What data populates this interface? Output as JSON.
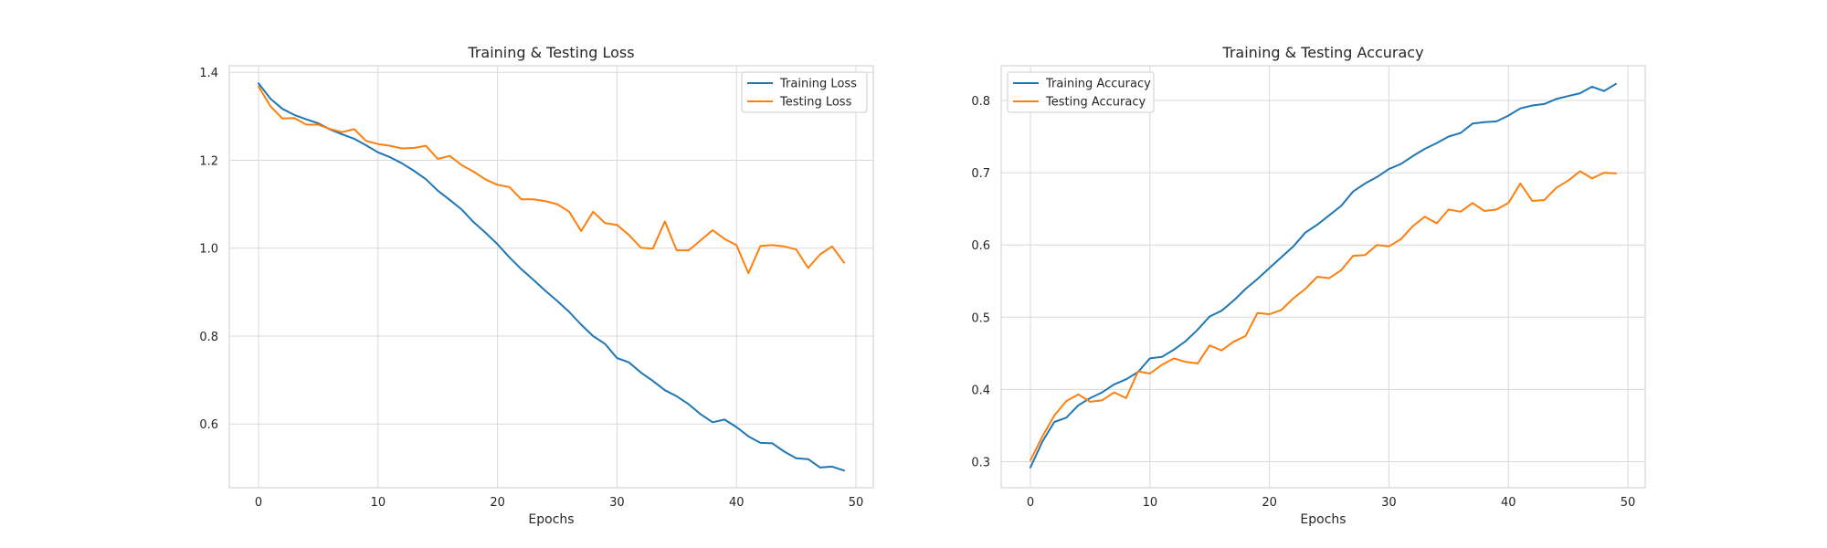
{
  "chart_data": [
    {
      "type": "line",
      "title": "Training & Testing Loss",
      "xlabel": "Epochs",
      "ylabel": "",
      "xlim": [
        -2.45,
        51.45
      ],
      "ylim": [
        0.455,
        1.415
      ],
      "xticks": [
        0,
        10,
        20,
        30,
        40,
        50
      ],
      "yticks": [
        0.6,
        0.8,
        1.0,
        1.2,
        1.4
      ],
      "ytick_labels": [
        "0.6",
        "0.8",
        "1.0",
        "1.2",
        "1.4"
      ],
      "grid": true,
      "legend_position": "top-right",
      "x": [
        0,
        1,
        2,
        3,
        4,
        5,
        6,
        7,
        8,
        9,
        10,
        11,
        12,
        13,
        14,
        15,
        16,
        17,
        18,
        19,
        20,
        21,
        22,
        23,
        24,
        25,
        26,
        27,
        28,
        29,
        30,
        31,
        32,
        33,
        34,
        35,
        36,
        37,
        38,
        39,
        40,
        41,
        42,
        43,
        44,
        45,
        46,
        47,
        48,
        49
      ],
      "series": [
        {
          "name": "Training Loss",
          "color": "#1f77b4",
          "values": [
            1.375,
            1.34,
            1.317,
            1.303,
            1.293,
            1.284,
            1.27,
            1.259,
            1.249,
            1.234,
            1.218,
            1.207,
            1.193,
            1.176,
            1.157,
            1.131,
            1.11,
            1.088,
            1.059,
            1.035,
            1.009,
            0.979,
            0.952,
            0.928,
            0.903,
            0.88,
            0.855,
            0.826,
            0.8,
            0.782,
            0.75,
            0.74,
            0.717,
            0.698,
            0.677,
            0.663,
            0.645,
            0.622,
            0.604,
            0.61,
            0.593,
            0.572,
            0.557,
            0.556,
            0.537,
            0.522,
            0.52,
            0.501,
            0.503,
            0.494
          ]
        },
        {
          "name": "Testing Loss",
          "color": "#ff7f0e",
          "values": [
            1.368,
            1.323,
            1.295,
            1.296,
            1.281,
            1.281,
            1.271,
            1.264,
            1.271,
            1.244,
            1.237,
            1.233,
            1.227,
            1.228,
            1.233,
            1.203,
            1.21,
            1.189,
            1.174,
            1.156,
            1.144,
            1.139,
            1.111,
            1.111,
            1.107,
            1.1,
            1.083,
            1.039,
            1.083,
            1.057,
            1.053,
            1.03,
            1.001,
            0.999,
            1.061,
            0.995,
            0.995,
            1.018,
            1.041,
            1.021,
            1.007,
            0.943,
            1.005,
            1.007,
            1.004,
            0.997,
            0.955,
            0.986,
            1.004,
            0.967
          ]
        }
      ]
    },
    {
      "type": "line",
      "title": "Training & Testing Accuracy",
      "xlabel": "Epochs",
      "ylabel": "",
      "xlim": [
        -2.45,
        51.45
      ],
      "ylim": [
        0.264,
        0.848
      ],
      "xticks": [
        0,
        10,
        20,
        30,
        40,
        50
      ],
      "yticks": [
        0.3,
        0.4,
        0.5,
        0.6,
        0.7,
        0.8
      ],
      "ytick_labels": [
        "0.3",
        "0.4",
        "0.5",
        "0.6",
        "0.7",
        "0.8"
      ],
      "grid": true,
      "legend_position": "top-left",
      "x": [
        0,
        1,
        2,
        3,
        4,
        5,
        6,
        7,
        8,
        9,
        10,
        11,
        12,
        13,
        14,
        15,
        16,
        17,
        18,
        19,
        20,
        21,
        22,
        23,
        24,
        25,
        26,
        27,
        28,
        29,
        30,
        31,
        32,
        33,
        34,
        35,
        36,
        37,
        38,
        39,
        40,
        41,
        42,
        43,
        44,
        45,
        46,
        47,
        48,
        49
      ],
      "series": [
        {
          "name": "Training Accuracy",
          "color": "#1f77b4",
          "values": [
            0.292,
            0.328,
            0.355,
            0.361,
            0.378,
            0.388,
            0.396,
            0.407,
            0.414,
            0.424,
            0.443,
            0.445,
            0.455,
            0.467,
            0.483,
            0.501,
            0.509,
            0.523,
            0.539,
            0.553,
            0.568,
            0.583,
            0.598,
            0.617,
            0.628,
            0.641,
            0.654,
            0.674,
            0.685,
            0.694,
            0.705,
            0.712,
            0.723,
            0.733,
            0.741,
            0.75,
            0.755,
            0.768,
            0.77,
            0.771,
            0.779,
            0.789,
            0.793,
            0.795,
            0.802,
            0.806,
            0.81,
            0.819,
            0.813,
            0.823
          ]
        },
        {
          "name": "Testing Accuracy",
          "color": "#ff7f0e",
          "values": [
            0.302,
            0.335,
            0.364,
            0.384,
            0.393,
            0.383,
            0.385,
            0.396,
            0.388,
            0.425,
            0.422,
            0.434,
            0.443,
            0.438,
            0.436,
            0.461,
            0.454,
            0.466,
            0.474,
            0.506,
            0.504,
            0.51,
            0.526,
            0.539,
            0.556,
            0.554,
            0.565,
            0.585,
            0.586,
            0.6,
            0.598,
            0.608,
            0.626,
            0.639,
            0.63,
            0.649,
            0.646,
            0.658,
            0.647,
            0.649,
            0.658,
            0.685,
            0.661,
            0.662,
            0.679,
            0.689,
            0.702,
            0.692,
            0.7,
            0.699
          ]
        }
      ]
    }
  ]
}
